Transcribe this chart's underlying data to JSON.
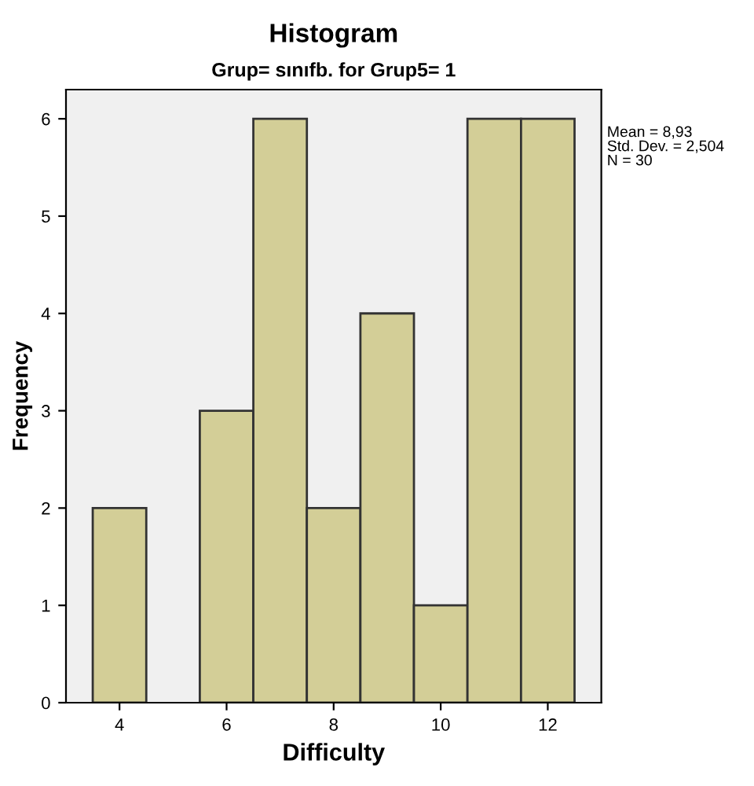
{
  "chart_data": {
    "type": "histogram",
    "title": "Histogram",
    "subtitle": "Grup= sınıfb. for Grup5= 1",
    "xlabel": "Difficulty",
    "ylabel": "Frequency",
    "bins": [
      3.5,
      4.5,
      5.5,
      6.5,
      7.5,
      8.5,
      9.5,
      10.5,
      11.5,
      12.5
    ],
    "values": [
      2,
      0,
      3,
      6,
      2,
      4,
      1,
      6,
      6
    ],
    "color": "#d3ce97",
    "xlim": [
      3,
      13
    ],
    "ylim": [
      0,
      6.3
    ],
    "xticks": [
      4,
      6,
      8,
      10,
      12
    ],
    "yticks": [
      0,
      1,
      2,
      3,
      4,
      5,
      6
    ],
    "grid": false,
    "legend": false,
    "annotations": [
      "Mean = 8,93\nStd. Dev. = 2,504\nN = 30"
    ]
  }
}
